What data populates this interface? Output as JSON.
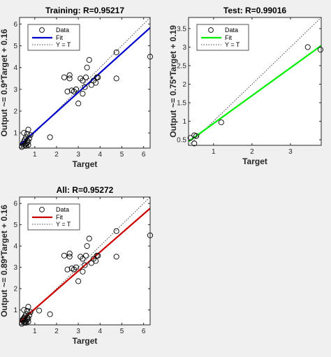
{
  "chart_data": [
    {
      "type": "scatter",
      "title": "Training: R=0.95217",
      "xlabel": "Target",
      "ylabel": "Output ~= 0.9*Target + 0.16",
      "xlim": [
        0.3,
        6.3
      ],
      "ylim": [
        0.3,
        6.3
      ],
      "xticks": [
        1,
        2,
        3,
        4,
        5,
        6
      ],
      "yticks": [
        1,
        2,
        3,
        4,
        5,
        6
      ],
      "fit": {
        "slope": 0.9,
        "intercept": 0.16,
        "color": "#0000cc"
      },
      "legend": {
        "placement": "top-left",
        "entries": [
          "Data",
          "Fit",
          "Y = T"
        ]
      },
      "series": [
        {
          "name": "Data",
          "x": [
            0.4,
            0.45,
            0.5,
            0.5,
            0.55,
            0.55,
            0.6,
            0.6,
            0.65,
            0.65,
            0.7,
            0.7,
            0.75,
            0.8,
            0.5,
            0.6,
            0.7,
            0.65,
            1.7,
            2.35,
            2.5,
            2.6,
            2.6,
            2.7,
            2.8,
            2.9,
            3.0,
            3.1,
            3.2,
            3.2,
            3.3,
            3.35,
            3.4,
            3.5,
            3.6,
            3.7,
            3.8,
            3.85,
            3.9,
            4.75,
            4.75,
            6.3
          ],
          "y": [
            0.35,
            0.5,
            0.4,
            0.6,
            0.45,
            0.7,
            0.5,
            0.8,
            0.55,
            0.95,
            0.6,
            1.15,
            0.75,
            0.9,
            1.0,
            0.4,
            0.45,
            0.65,
            0.8,
            3.55,
            2.9,
            3.5,
            3.65,
            2.95,
            2.9,
            3.0,
            2.35,
            3.5,
            2.8,
            3.4,
            3.1,
            3.55,
            4.0,
            4.35,
            3.2,
            3.4,
            3.3,
            3.55,
            3.55,
            3.5,
            4.7,
            4.5
          ]
        }
      ]
    },
    {
      "type": "scatter",
      "title": "Test: R=0.99016",
      "xlabel": "Target",
      "ylabel": "Output ~= 0.75*Target + 0.19",
      "xlim": [
        0.35,
        3.8
      ],
      "ylim": [
        0.35,
        3.8
      ],
      "xticks": [
        1,
        2,
        3
      ],
      "yticks": [
        0.5,
        1,
        1.5,
        2,
        2.5,
        3,
        3.5
      ],
      "fit": {
        "slope": 0.75,
        "intercept": 0.19,
        "color": "#00ee00"
      },
      "legend": {
        "placement": "top-left",
        "entries": [
          "Data",
          "Fit",
          "Y = T"
        ]
      },
      "series": [
        {
          "name": "Data",
          "x": [
            0.4,
            0.5,
            0.55,
            0.5,
            1.2,
            3.45,
            3.78
          ],
          "y": [
            0.55,
            0.4,
            0.6,
            0.62,
            0.97,
            3.0,
            2.93
          ]
        }
      ]
    },
    {
      "type": "scatter",
      "title": "All: R=0.95272",
      "xlabel": "Target",
      "ylabel": "Output ~= 0.89*Target + 0.16",
      "xlim": [
        0.3,
        6.3
      ],
      "ylim": [
        0.3,
        6.3
      ],
      "xticks": [
        1,
        2,
        3,
        4,
        5,
        6
      ],
      "yticks": [
        1,
        2,
        3,
        4,
        5,
        6
      ],
      "fit": {
        "slope": 0.89,
        "intercept": 0.16,
        "color": "#cc0000"
      },
      "legend": {
        "placement": "top-left",
        "entries": [
          "Data",
          "Fit",
          "Y = T"
        ]
      },
      "series": [
        {
          "name": "Data",
          "x": [
            0.4,
            0.45,
            0.5,
            0.5,
            0.55,
            0.55,
            0.6,
            0.6,
            0.65,
            0.65,
            0.7,
            0.7,
            0.75,
            0.8,
            0.5,
            0.6,
            0.7,
            0.65,
            0.45,
            0.5,
            0.55,
            0.5,
            1.2,
            1.7,
            2.35,
            2.5,
            2.6,
            2.6,
            2.7,
            2.8,
            2.9,
            3.0,
            3.1,
            3.2,
            3.2,
            3.3,
            3.35,
            3.4,
            3.5,
            3.6,
            3.7,
            3.8,
            3.85,
            3.9,
            4.75,
            4.75,
            6.3
          ],
          "y": [
            0.35,
            0.5,
            0.4,
            0.6,
            0.45,
            0.7,
            0.5,
            0.8,
            0.55,
            0.95,
            0.6,
            1.15,
            0.75,
            0.9,
            1.0,
            0.4,
            0.45,
            0.65,
            0.55,
            0.62,
            0.4,
            0.6,
            0.97,
            0.8,
            3.55,
            2.9,
            3.5,
            3.65,
            2.95,
            2.9,
            3.0,
            2.35,
            3.5,
            2.8,
            3.4,
            3.1,
            3.55,
            4.0,
            4.35,
            3.2,
            3.4,
            3.3,
            3.55,
            3.55,
            3.5,
            4.7,
            4.5
          ]
        }
      ]
    }
  ]
}
